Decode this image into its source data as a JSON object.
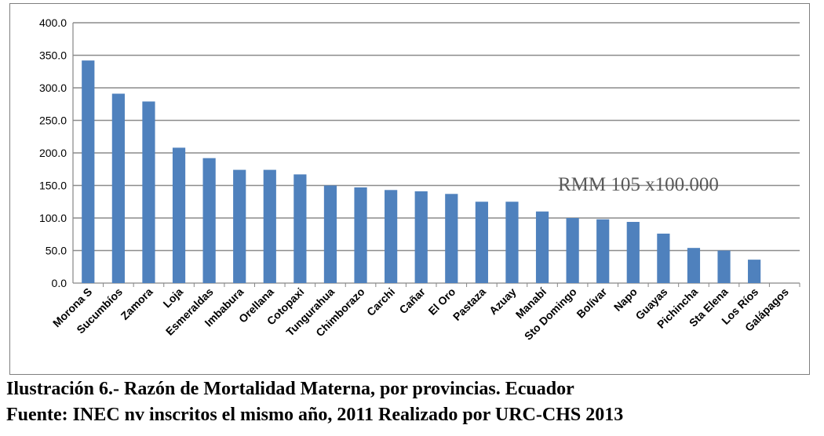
{
  "chart_data": {
    "type": "bar",
    "title": "",
    "xlabel": "",
    "ylabel": "",
    "ylim": [
      0,
      400
    ],
    "yticks": [
      0,
      50,
      100,
      150,
      200,
      250,
      300,
      350,
      400
    ],
    "ytick_labels": [
      "0.0",
      "50.0",
      "100.0",
      "150.0",
      "200.0",
      "250.0",
      "300.0",
      "350.0",
      "400.0"
    ],
    "grid": true,
    "legend": "none",
    "bar_color": "#4f81bd",
    "categories": [
      "Morona S",
      "Sucumbíos",
      "Zamora",
      "Loja",
      "Esmeraldas",
      "Imbabura",
      "Orellana",
      "Cotopaxi",
      "Tungurahua",
      "Chimborazo",
      "Carchi",
      "Cañar",
      "El Oro",
      "Pastaza",
      "Azuay",
      "Manabí",
      "Sto Domingo",
      "Bolívar",
      "Napo",
      "Guayas",
      "Pichincha",
      "Sta Elena",
      "Los Ríos",
      "Galápagos"
    ],
    "values": [
      342,
      291,
      279,
      208,
      192,
      174,
      174,
      167,
      150,
      147,
      143,
      141,
      137,
      125,
      125,
      110,
      100,
      98,
      94,
      76,
      54,
      50,
      36,
      0
    ],
    "annotation": "RMM 105 x100.000"
  },
  "caption": {
    "line1": "Ilustración 6.- Razón de Mortalidad Materna, por provincias. Ecuador",
    "line2": "Fuente: INEC nv inscritos el mismo año, 2011 Realizado por URC-CHS 2013"
  }
}
